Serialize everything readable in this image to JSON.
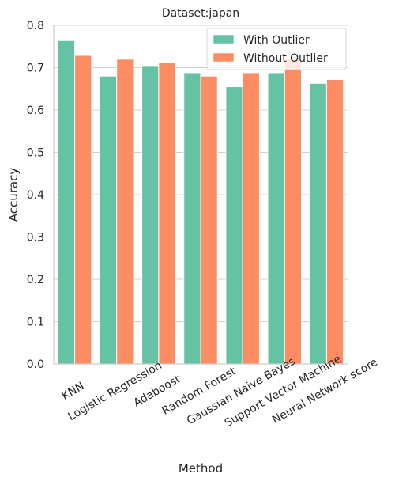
{
  "chart_data": {
    "type": "bar",
    "title": "Dataset:japan",
    "xlabel": "Method",
    "ylabel": "Accuracy",
    "ylim": [
      0,
      0.8
    ],
    "yticks": [
      0.0,
      0.1,
      0.2,
      0.3,
      0.4,
      0.5,
      0.6,
      0.7,
      0.8
    ],
    "ytick_labels": [
      "0.0",
      "0.1",
      "0.2",
      "0.3",
      "0.4",
      "0.5",
      "0.6",
      "0.7",
      "0.8"
    ],
    "grid": "horizontal",
    "legend_position": "top-right",
    "categories": [
      "KNN",
      "Logistic Regression",
      "Adaboost",
      "Random Forest",
      "Gaussian Naive Bayes",
      "Support Vector Machine",
      "Neural Network score"
    ],
    "series": [
      {
        "name": "With Outlier",
        "color": "#66c2a5",
        "values": [
          0.764,
          0.68,
          0.703,
          0.688,
          0.655,
          0.688,
          0.663
        ]
      },
      {
        "name": "Without Outlier",
        "color": "#fc8d62",
        "values": [
          0.729,
          0.72,
          0.712,
          0.68,
          0.688,
          0.723,
          0.672
        ]
      }
    ]
  }
}
